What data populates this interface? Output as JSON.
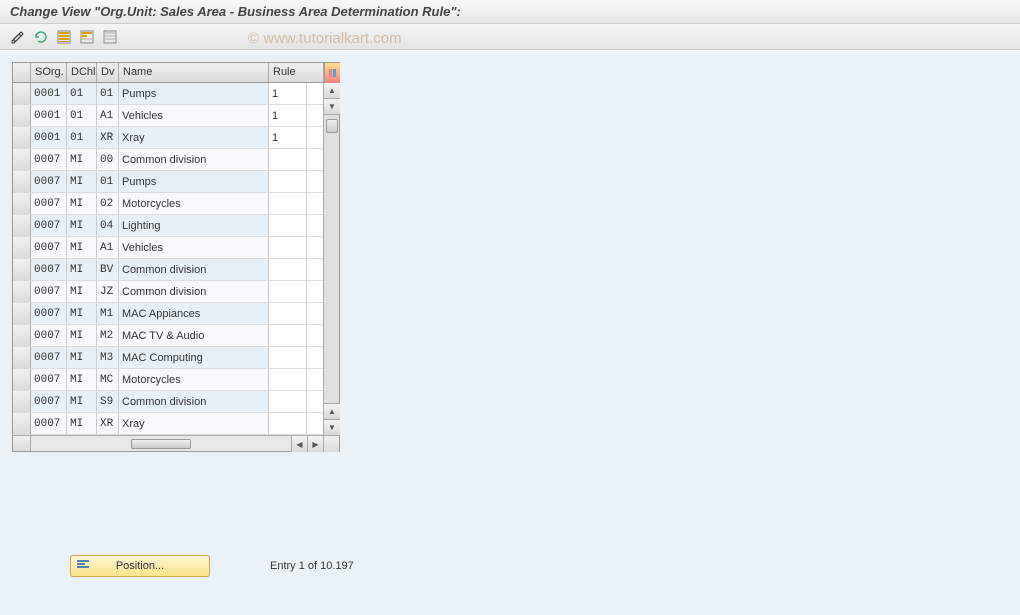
{
  "header": {
    "title": "Change View \"Org.Unit: Sales Area - Business Area Determination Rule\":"
  },
  "watermark": "© www.tutorialkart.com",
  "toolbar": {
    "buttons": [
      {
        "name": "expand-icon",
        "glyph": "pencil-double",
        "color": "#333"
      },
      {
        "name": "undo-icon",
        "glyph": "undo",
        "color": "#4a7"
      },
      {
        "name": "select-all-icon",
        "glyph": "grid",
        "color": "#d9a000"
      },
      {
        "name": "select-block-icon",
        "glyph": "grid-partial",
        "color": "#d9a000"
      },
      {
        "name": "deselect-icon",
        "glyph": "grid-empty",
        "color": "#888"
      }
    ]
  },
  "table": {
    "columns": {
      "sorg": "SOrg.",
      "dchl": "DChl",
      "dv": "Dv",
      "name": "Name",
      "rule": "Rule"
    },
    "rows": [
      {
        "sorg": "0001",
        "dchl": "01",
        "dv": "01",
        "name": "Pumps",
        "rule": "1"
      },
      {
        "sorg": "0001",
        "dchl": "01",
        "dv": "A1",
        "name": "Vehicles",
        "rule": "1"
      },
      {
        "sorg": "0001",
        "dchl": "01",
        "dv": "XR",
        "name": "Xray",
        "rule": "1"
      },
      {
        "sorg": "0007",
        "dchl": "MI",
        "dv": "00",
        "name": "Common division",
        "rule": ""
      },
      {
        "sorg": "0007",
        "dchl": "MI",
        "dv": "01",
        "name": "Pumps",
        "rule": ""
      },
      {
        "sorg": "0007",
        "dchl": "MI",
        "dv": "02",
        "name": "Motorcycles",
        "rule": ""
      },
      {
        "sorg": "0007",
        "dchl": "MI",
        "dv": "04",
        "name": "Lighting",
        "rule": ""
      },
      {
        "sorg": "0007",
        "dchl": "MI",
        "dv": "A1",
        "name": "Vehicles",
        "rule": ""
      },
      {
        "sorg": "0007",
        "dchl": "MI",
        "dv": "BV",
        "name": "Common division",
        "rule": ""
      },
      {
        "sorg": "0007",
        "dchl": "MI",
        "dv": "JZ",
        "name": "Common division",
        "rule": ""
      },
      {
        "sorg": "0007",
        "dchl": "MI",
        "dv": "M1",
        "name": "MAC Appiances",
        "rule": ""
      },
      {
        "sorg": "0007",
        "dchl": "MI",
        "dv": "M2",
        "name": "MAC TV & Audio",
        "rule": ""
      },
      {
        "sorg": "0007",
        "dchl": "MI",
        "dv": "M3",
        "name": "MAC Computing",
        "rule": ""
      },
      {
        "sorg": "0007",
        "dchl": "MI",
        "dv": "MC",
        "name": "Motorcycles",
        "rule": ""
      },
      {
        "sorg": "0007",
        "dchl": "MI",
        "dv": "S9",
        "name": "Common division",
        "rule": ""
      },
      {
        "sorg": "0007",
        "dchl": "MI",
        "dv": "XR",
        "name": "Xray",
        "rule": ""
      }
    ]
  },
  "footer": {
    "position_label": "Position...",
    "entry_text": "Entry 1 of 10.197"
  },
  "colors": {
    "page_bg": "#eaf1f7",
    "header_gradient_top": "#f8f8f8",
    "header_gradient_bottom": "#e8e8e8",
    "table_bg": "#ffffff",
    "readonly_cell": "#e8f0f7",
    "border": "#999999",
    "position_btn_top": "#fef6d8",
    "position_btn_bottom": "#fbe48a"
  }
}
